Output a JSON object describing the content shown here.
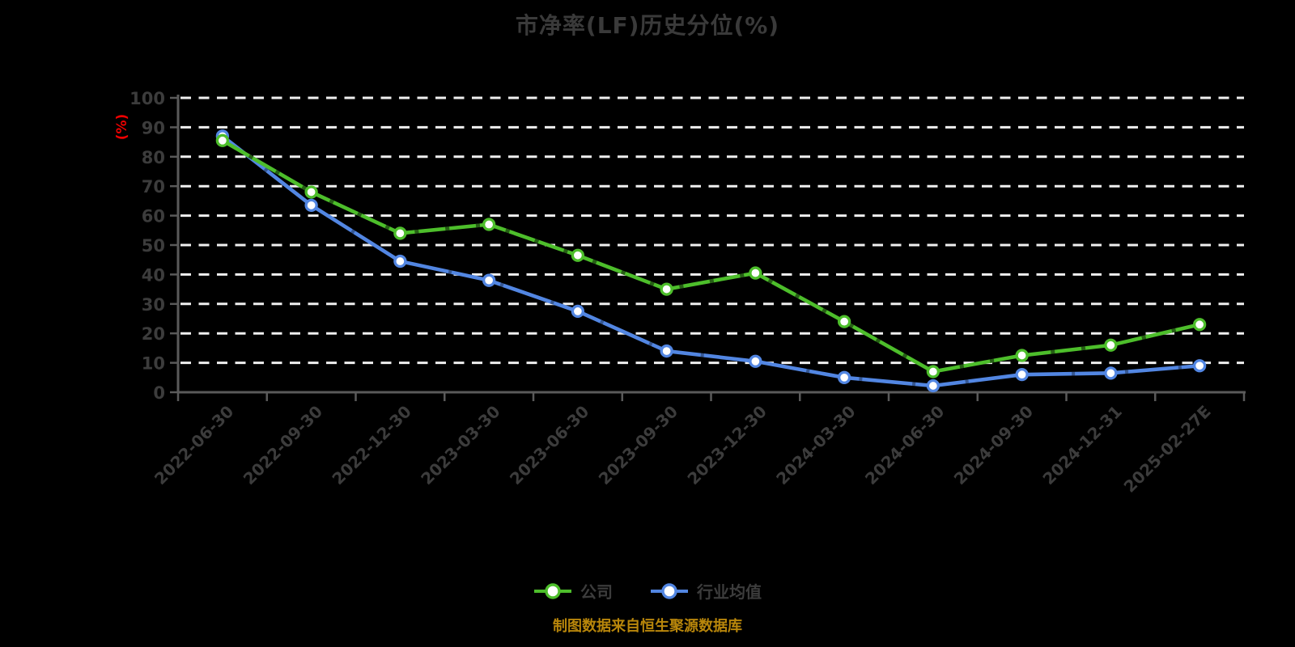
{
  "page": {
    "background_color": "#000000"
  },
  "header": {
    "title": "市净率(LF)历史分位(%)"
  },
  "footer": {
    "source_note": "制图数据来自恒生聚源数据库",
    "note_color": "#b8860b"
  },
  "legend": {
    "position": "bottom-center",
    "items": [
      {
        "label": "公司",
        "color": "#4dbe2b",
        "marker": "circle-on-line"
      },
      {
        "label": "行业均值",
        "color": "#5286e2",
        "marker": "circle-on-line"
      }
    ]
  },
  "chart_data": {
    "type": "line",
    "title": "市净率(LF)历史分位(%)",
    "xlabel": "",
    "ylabel": "(%)",
    "ylabel_color": "#ee0000",
    "ylim": [
      0,
      100
    ],
    "y_tick_step": 10,
    "y_ticks": [
      0,
      10,
      20,
      30,
      40,
      50,
      60,
      70,
      80,
      90,
      100
    ],
    "grid": "horizontal white dashed",
    "grid_color": "#efefef",
    "axis_color": "#5a5a5a",
    "tick_label_color": "#3c3c3c",
    "legend_position": "bottom-center",
    "categories": [
      "2022-06-30",
      "2022-09-30",
      "2022-12-30",
      "2023-03-30",
      "2023-06-30",
      "2023-09-30",
      "2023-12-30",
      "2024-03-30",
      "2024-06-30",
      "2024-09-30",
      "2024-12-31",
      "2025-02-27E"
    ],
    "series": [
      {
        "name": "公司",
        "color": "#4dbe2b",
        "values": [
          85.5,
          68,
          54,
          57,
          46.5,
          35,
          40.5,
          24,
          7,
          12.5,
          16,
          23
        ]
      },
      {
        "name": "行业均值",
        "color": "#5286e2",
        "values": [
          87,
          63.5,
          44.5,
          38,
          27.5,
          14,
          10.5,
          5,
          2.2,
          6,
          6.5,
          9
        ]
      }
    ]
  }
}
